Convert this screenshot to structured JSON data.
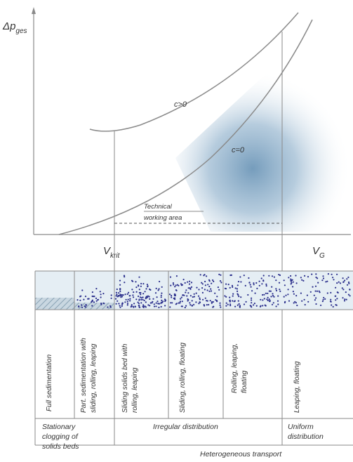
{
  "axes": {
    "y_symbol": "Δp",
    "y_subscript": "ges",
    "x_symbol": "V",
    "x_subscript": "G",
    "critical_symbol": "V",
    "critical_subscript": "krit"
  },
  "curves": {
    "upper_label": "c>0",
    "lower_label": "c=0"
  },
  "working_area": {
    "line1": "Technical",
    "line2": "working area"
  },
  "regimes": [
    {
      "lines": [
        "Full sedimentation"
      ]
    },
    {
      "lines": [
        "Part. sedimentation with",
        "sliding, rolling, leaping"
      ]
    },
    {
      "lines": [
        "Sliding solids bed with",
        "rolling, leaping"
      ]
    },
    {
      "lines": [
        "Sliding, rolling, floating"
      ]
    },
    {
      "lines": [
        "Rolling, leaping,",
        "floating"
      ]
    },
    {
      "lines": [
        "Leaping, floating"
      ]
    }
  ],
  "distribution": {
    "stationary": [
      "Stationary",
      "clogging of",
      "solids beds"
    ],
    "irregular": "Irregular distribution",
    "uniform": [
      "Uniform",
      "distribution"
    ],
    "heterogeneous": "Heterogeneous transport"
  },
  "colors": {
    "line": "#8a8a8a",
    "shade": "#5d8bb0",
    "dots": "#2b2f8c",
    "pipe_fill": "#e5eef4",
    "hatch": "#8aa3b5"
  }
}
